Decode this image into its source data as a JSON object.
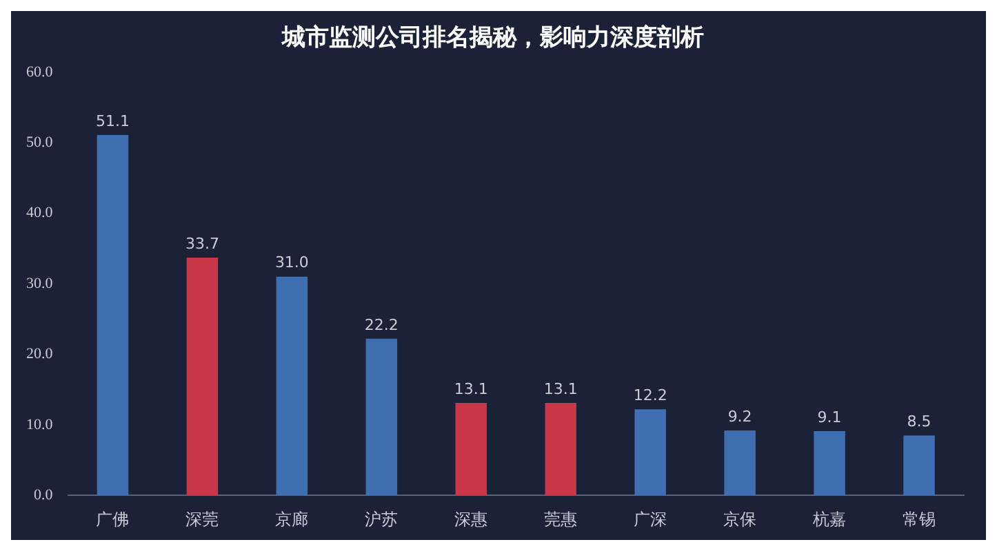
{
  "chart_data": {
    "type": "bar",
    "title": "城市监测公司排名揭秘，影响力深度剖析",
    "categories": [
      "广佛",
      "深莞",
      "京廊",
      "沪苏",
      "深惠",
      "莞惠",
      "广深",
      "京保",
      "杭嘉",
      "常锡"
    ],
    "values": [
      51.1,
      33.7,
      31.0,
      22.2,
      13.1,
      13.1,
      12.2,
      9.2,
      9.1,
      8.5
    ],
    "colors": [
      "#3f6fb0",
      "#c9364a",
      "#3f6fb0",
      "#3f6fb0",
      "#c9364a",
      "#c9364a",
      "#3f6fb0",
      "#3f6fb0",
      "#3f6fb0",
      "#3f6fb0"
    ],
    "value_labels": [
      "51.1",
      "33.7",
      "31.0",
      "22.2",
      "13.1",
      "13.1",
      "12.2",
      "9.2",
      "9.1",
      "8.5"
    ],
    "ylim": [
      0,
      60
    ],
    "yticks": [
      {
        "value": 0,
        "label": "0.0"
      },
      {
        "value": 10,
        "label": "10.0"
      },
      {
        "value": 20,
        "label": "20.0"
      },
      {
        "value": 30,
        "label": "30.0"
      },
      {
        "value": 40,
        "label": "40.0"
      },
      {
        "value": 50,
        "label": "50.0"
      },
      {
        "value": 60,
        "label": "60.0"
      }
    ],
    "grid": false,
    "legend": false
  }
}
